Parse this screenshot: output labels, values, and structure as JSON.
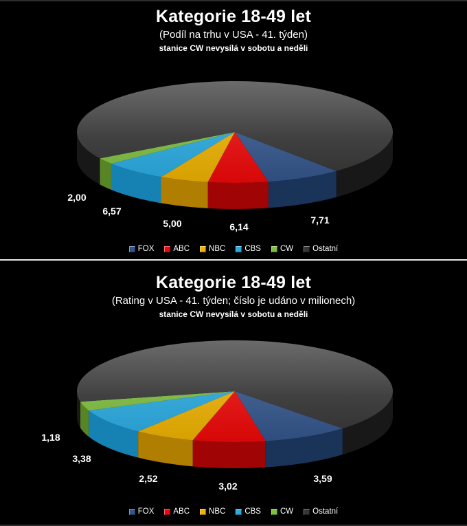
{
  "window": {
    "background": "#000000",
    "frame_border_color": "#2e2e2e",
    "panel_separator_color": "#e8e8e8"
  },
  "chart_data": [
    {
      "type": "pie",
      "style": "3d-pie",
      "title": "Kategorie 18-49 let",
      "subtitle": "(Podíl na trhu v USA - 41. týden)",
      "note": "stanice CW nevysílá v sobotu a neděli",
      "legend_position": "bottom",
      "start_angle_deg": 140,
      "slices": [
        {
          "name": "FOX",
          "value": 7.71,
          "label": "7,71",
          "color": "#33568c",
          "side_color": "#1a3358"
        },
        {
          "name": "ABC",
          "value": 6.14,
          "label": "6,14",
          "color": "#ee0808",
          "side_color": "#a00404"
        },
        {
          "name": "NBC",
          "value": 5.0,
          "label": "5,00",
          "color": "#eeb200",
          "side_color": "#b07e00"
        },
        {
          "name": "CBS",
          "value": 6.57,
          "label": "6,57",
          "color": "#29abe2",
          "side_color": "#1682b4"
        },
        {
          "name": "CW",
          "value": 2.0,
          "label": "2,00",
          "color": "#7fbf3f",
          "side_color": "#578526"
        },
        {
          "name": "Ostatní",
          "value": 72.58,
          "label": "",
          "value_estimated": true,
          "unlabeled": true,
          "color": "#353535",
          "side_color": "#181818"
        }
      ]
    },
    {
      "type": "pie",
      "style": "3d-pie",
      "title": "Kategorie 18-49 let",
      "subtitle": "(Rating v USA - 41. týden; číslo je udáno v milionech)",
      "note": "stanice CW nevysílá v sobotu a neděli",
      "legend_position": "bottom",
      "start_angle_deg": 137,
      "slices": [
        {
          "name": "FOX",
          "value": 3.59,
          "label": "3,59",
          "color": "#33568c",
          "side_color": "#1a3358"
        },
        {
          "name": "ABC",
          "value": 3.02,
          "label": "3,02",
          "color": "#ee0808",
          "side_color": "#a00404"
        },
        {
          "name": "NBC",
          "value": 2.52,
          "label": "2,52",
          "color": "#eeb200",
          "side_color": "#b07e00"
        },
        {
          "name": "CBS",
          "value": 3.38,
          "label": "3,38",
          "color": "#29abe2",
          "side_color": "#1682b4"
        },
        {
          "name": "CW",
          "value": 1.18,
          "label": "1,18",
          "color": "#7fbf3f",
          "side_color": "#578526"
        },
        {
          "name": "Ostatní",
          "value": 27.0,
          "label": "",
          "value_estimated": true,
          "unlabeled": true,
          "color": "#353535",
          "side_color": "#181818"
        }
      ]
    }
  ]
}
